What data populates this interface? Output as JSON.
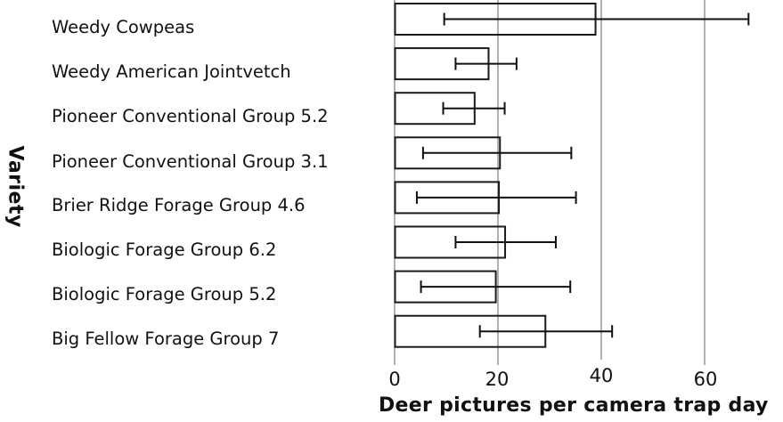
{
  "chart_data": {
    "type": "bar",
    "orientation": "horizontal",
    "title": "",
    "xlabel": "Deer pictures per camera trap day",
    "ylabel": "Variety",
    "xlim": [
      0,
      75
    ],
    "xticks": [
      0,
      20,
      40,
      60
    ],
    "grid": {
      "x": true,
      "y": false
    },
    "legend": null,
    "categories": [
      "Weedy Cowpeas",
      "Weedy American Jointvetch",
      "Pioneer Conventional Group 5.2",
      "Pioneer Conventional Group 3.1",
      "Brier Ridge Forage Group 4.6",
      "Biologic Forage Group 6.2",
      "Biologic Forage Group 5.2",
      "Big Fellow Forage Group 7"
    ],
    "values": [
      38.8,
      18.1,
      15.4,
      20.3,
      20.1,
      21.3,
      19.5,
      29.1
    ],
    "error_low": [
      9.6,
      11.8,
      9.4,
      5.5,
      4.3,
      11.8,
      5.1,
      16.5
    ],
    "error_high": [
      68.5,
      23.6,
      21.3,
      34.2,
      35.1,
      31.2,
      34.0,
      42.1
    ]
  },
  "axis": {
    "ylabel": "Variety",
    "xlabel": "Deer pictures per camera trap day",
    "ticks": [
      "0",
      "20",
      "40",
      "60"
    ]
  },
  "categories": [
    "Weedy Cowpeas",
    "Weedy American Jointvetch",
    "Pioneer Conventional Group 5.2",
    "Pioneer Conventional Group 3.1",
    "Brier Ridge Forage Group 4.6",
    "Biologic Forage Group 6.2",
    "Biologic Forage Group 5.2",
    "Big Fellow Forage Group 7"
  ]
}
